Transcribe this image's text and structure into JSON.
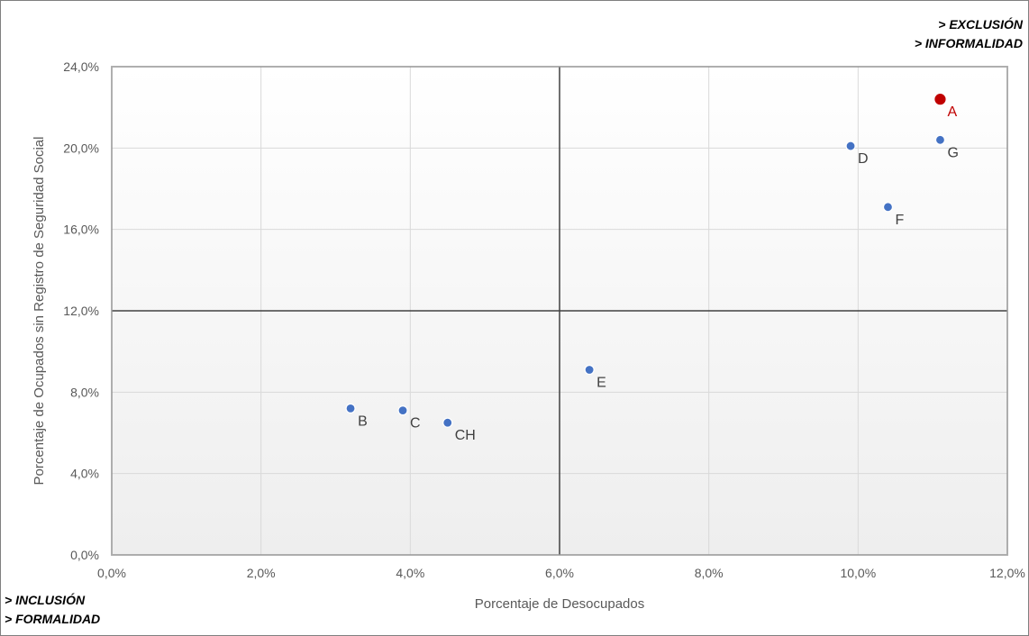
{
  "corner_labels": {
    "top_right": [
      "> EXCLUSIÓN",
      "> INFORMALIDAD"
    ],
    "bottom_left": [
      "> INCLUSIÓN",
      "> FORMALIDAD"
    ]
  },
  "colors": {
    "default_point": "#4472c4",
    "highlight_point": "#c00000",
    "default_label": "#404040",
    "highlight_label": "#c00000",
    "axis_text": "#595959",
    "gridline": "#d9d9d9",
    "quadrant_line": "#404040"
  },
  "chart_data": {
    "type": "scatter",
    "title": "",
    "xlabel": "Porcentaje de Desocupados",
    "ylabel": "Porcentaje de Ocupados sin Registro de Seguridad Social",
    "xlim": [
      0,
      12
    ],
    "ylim": [
      0,
      24
    ],
    "x_ticks": [
      {
        "value": 0,
        "label": "0,0%"
      },
      {
        "value": 2,
        "label": "2,0%"
      },
      {
        "value": 4,
        "label": "4,0%"
      },
      {
        "value": 6,
        "label": "6,0%"
      },
      {
        "value": 8,
        "label": "8,0%"
      },
      {
        "value": 10,
        "label": "10,0%"
      },
      {
        "value": 12,
        "label": "12,0%"
      }
    ],
    "y_ticks": [
      {
        "value": 0,
        "label": "0,0%"
      },
      {
        "value": 4,
        "label": "4,0%"
      },
      {
        "value": 8,
        "label": "8,0%"
      },
      {
        "value": 12,
        "label": "12,0%"
      },
      {
        "value": 16,
        "label": "16,0%"
      },
      {
        "value": 20,
        "label": "20,0%"
      },
      {
        "value": 24,
        "label": "24,0%"
      }
    ],
    "grid": true,
    "quadrant_lines": {
      "x": 6,
      "y": 12
    },
    "points": [
      {
        "label": "A",
        "x": 11.1,
        "y": 22.4,
        "highlight": true
      },
      {
        "label": "B",
        "x": 3.2,
        "y": 7.2,
        "highlight": false
      },
      {
        "label": "C",
        "x": 3.9,
        "y": 7.1,
        "highlight": false
      },
      {
        "label": "CH",
        "x": 4.5,
        "y": 6.5,
        "highlight": false
      },
      {
        "label": "D",
        "x": 9.9,
        "y": 20.1,
        "highlight": false
      },
      {
        "label": "E",
        "x": 6.4,
        "y": 9.1,
        "highlight": false
      },
      {
        "label": "F",
        "x": 10.4,
        "y": 17.1,
        "highlight": false
      },
      {
        "label": "G",
        "x": 11.1,
        "y": 20.4,
        "highlight": false
      }
    ]
  }
}
